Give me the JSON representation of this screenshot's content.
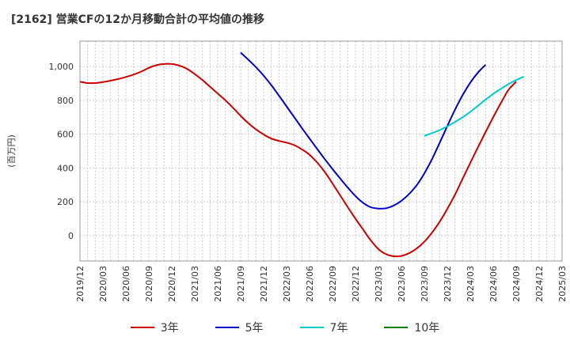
{
  "title": "[2162]  営業CFの12か月移動合計の平均値の推移",
  "chart_data": {
    "type": "line",
    "title": "[2162]  営業CFの12か月移動合計の平均値の推移",
    "xlabel": "",
    "ylabel": "(百万円)",
    "ylim": [
      -150,
      1150
    ],
    "yticks": [
      0,
      200,
      400,
      600,
      800,
      1000
    ],
    "ytick_labels": [
      "0",
      "200",
      "400",
      "600",
      "800",
      "1,000"
    ],
    "x_range": [
      "2019-12",
      "2025-03"
    ],
    "xtick_labels": [
      "2019/12",
      "2020/03",
      "2020/06",
      "2020/09",
      "2020/12",
      "2021/03",
      "2021/06",
      "2021/09",
      "2021/12",
      "2022/03",
      "2022/06",
      "2022/09",
      "2022/12",
      "2023/03",
      "2023/06",
      "2023/09",
      "2023/12",
      "2024/03",
      "2024/06",
      "2024/09",
      "2024/12",
      "2025/03"
    ],
    "grid": true,
    "legend_position": "bottom",
    "series": [
      {
        "name": "3年",
        "color": "#cc0000",
        "points": [
          [
            "2019-12",
            910
          ],
          [
            "2020-01",
            902
          ],
          [
            "2020-02",
            902
          ],
          [
            "2020-03",
            908
          ],
          [
            "2020-04",
            916
          ],
          [
            "2020-05",
            926
          ],
          [
            "2020-06",
            938
          ],
          [
            "2020-07",
            952
          ],
          [
            "2020-08",
            970
          ],
          [
            "2020-09",
            992
          ],
          [
            "2020-10",
            1008
          ],
          [
            "2020-11",
            1015
          ],
          [
            "2020-12",
            1015
          ],
          [
            "2021-01",
            1005
          ],
          [
            "2021-02",
            986
          ],
          [
            "2021-03",
            955
          ],
          [
            "2021-04",
            920
          ],
          [
            "2021-05",
            880
          ],
          [
            "2021-06",
            840
          ],
          [
            "2021-07",
            800
          ],
          [
            "2021-08",
            756
          ],
          [
            "2021-09",
            708
          ],
          [
            "2021-10",
            665
          ],
          [
            "2021-11",
            628
          ],
          [
            "2021-12",
            598
          ],
          [
            "2022-01",
            574
          ],
          [
            "2022-02",
            560
          ],
          [
            "2022-03",
            550
          ],
          [
            "2022-04",
            535
          ],
          [
            "2022-05",
            510
          ],
          [
            "2022-06",
            478
          ],
          [
            "2022-07",
            432
          ],
          [
            "2022-08",
            376
          ],
          [
            "2022-09",
            308
          ],
          [
            "2022-10",
            238
          ],
          [
            "2022-11",
            168
          ],
          [
            "2022-12",
            100
          ],
          [
            "2023-01",
            36
          ],
          [
            "2023-02",
            -28
          ],
          [
            "2023-03",
            -80
          ],
          [
            "2023-04",
            -110
          ],
          [
            "2023-05",
            -122
          ],
          [
            "2023-06",
            -120
          ],
          [
            "2023-07",
            -104
          ],
          [
            "2023-08",
            -76
          ],
          [
            "2023-09",
            -36
          ],
          [
            "2023-10",
            18
          ],
          [
            "2023-11",
            82
          ],
          [
            "2023-12",
            158
          ],
          [
            "2024-01",
            242
          ],
          [
            "2024-02",
            336
          ],
          [
            "2024-03",
            430
          ],
          [
            "2024-04",
            522
          ],
          [
            "2024-05",
            612
          ],
          [
            "2024-06",
            700
          ],
          [
            "2024-07",
            784
          ],
          [
            "2024-08",
            862
          ],
          [
            "2024-09",
            910
          ]
        ]
      },
      {
        "name": "5年",
        "color": "#0000cc",
        "points": [
          [
            "2021-09",
            1082
          ],
          [
            "2021-10",
            1040
          ],
          [
            "2021-11",
            996
          ],
          [
            "2021-12",
            946
          ],
          [
            "2022-01",
            890
          ],
          [
            "2022-02",
            828
          ],
          [
            "2022-03",
            764
          ],
          [
            "2022-04",
            700
          ],
          [
            "2022-05",
            636
          ],
          [
            "2022-06",
            574
          ],
          [
            "2022-07",
            512
          ],
          [
            "2022-08",
            452
          ],
          [
            "2022-09",
            394
          ],
          [
            "2022-10",
            338
          ],
          [
            "2022-11",
            284
          ],
          [
            "2022-12",
            234
          ],
          [
            "2023-01",
            194
          ],
          [
            "2023-02",
            168
          ],
          [
            "2023-03",
            160
          ],
          [
            "2023-04",
            162
          ],
          [
            "2023-05",
            178
          ],
          [
            "2023-06",
            206
          ],
          [
            "2023-07",
            246
          ],
          [
            "2023-08",
            298
          ],
          [
            "2023-09",
            368
          ],
          [
            "2023-10",
            452
          ],
          [
            "2023-11",
            548
          ],
          [
            "2023-12",
            648
          ],
          [
            "2024-01",
            744
          ],
          [
            "2024-02",
            830
          ],
          [
            "2024-03",
            904
          ],
          [
            "2024-04",
            964
          ],
          [
            "2024-05",
            1010
          ]
        ]
      },
      {
        "name": "7年",
        "color": "#00cccc",
        "points": [
          [
            "2023-09",
            590
          ],
          [
            "2023-10",
            606
          ],
          [
            "2023-11",
            624
          ],
          [
            "2023-12",
            646
          ],
          [
            "2024-01",
            672
          ],
          [
            "2024-02",
            700
          ],
          [
            "2024-03",
            732
          ],
          [
            "2024-04",
            768
          ],
          [
            "2024-05",
            804
          ],
          [
            "2024-06",
            838
          ],
          [
            "2024-07",
            868
          ],
          [
            "2024-08",
            896
          ],
          [
            "2024-09",
            920
          ],
          [
            "2024-10",
            940
          ]
        ]
      },
      {
        "name": "10年",
        "color": "#008000",
        "points": []
      }
    ]
  }
}
